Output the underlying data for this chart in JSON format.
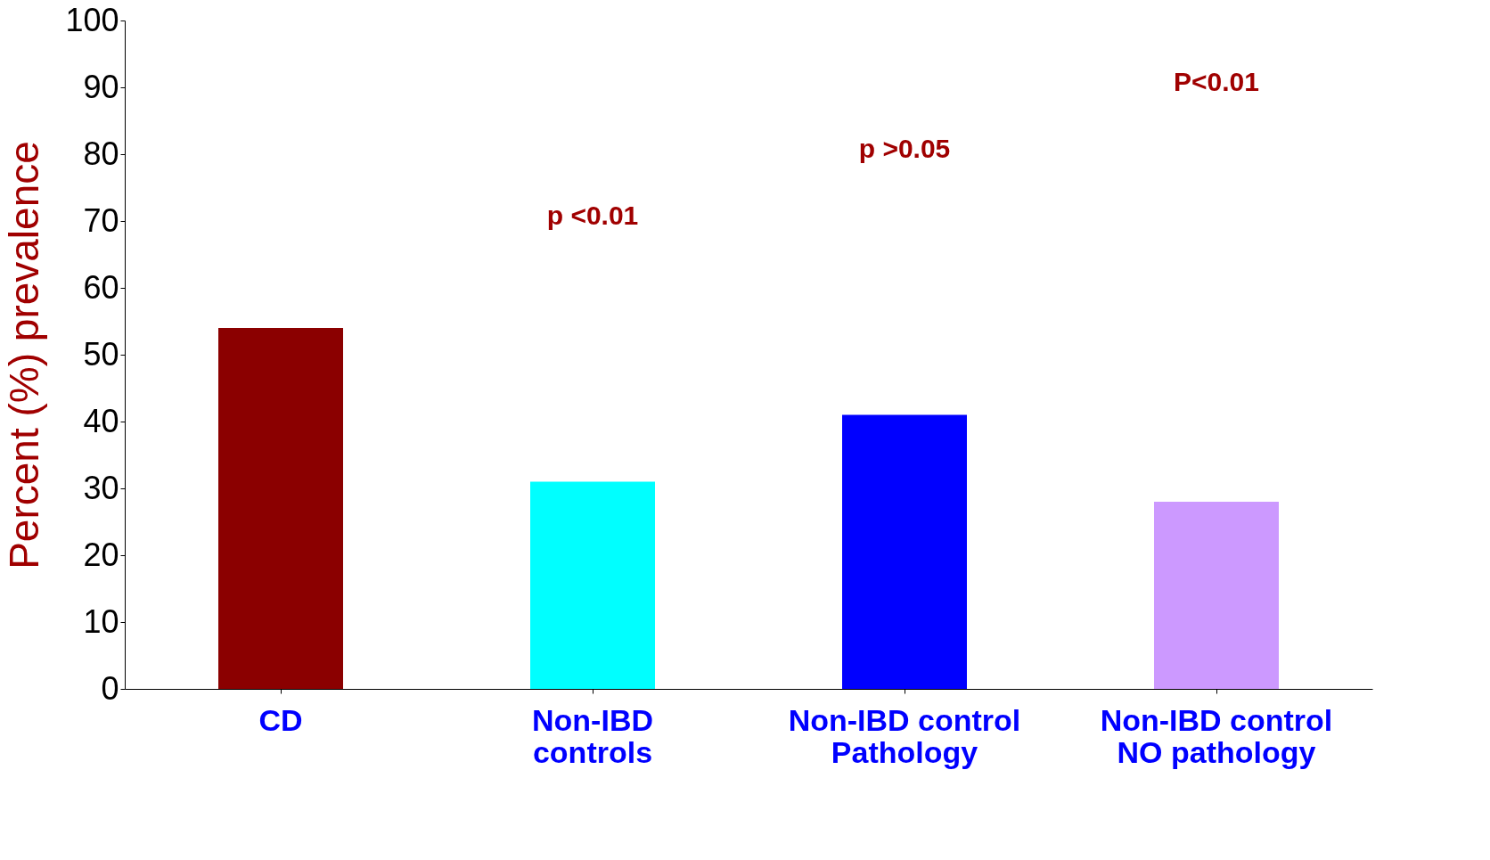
{
  "chart_data": {
    "type": "bar",
    "ylabel": "Percent (%) prevalence",
    "categories": [
      "CD",
      "Non-IBD\ncontrols",
      "Non-IBD control\nPathology",
      "Non-IBD control\nNO pathology"
    ],
    "values": [
      54,
      31,
      41,
      28
    ],
    "colors": [
      "#8b0000",
      "#00ffff",
      "#0000ff",
      "#cc99ff"
    ],
    "ylim": [
      0,
      100
    ],
    "yticks": [
      0,
      10,
      20,
      30,
      40,
      50,
      60,
      70,
      80,
      90,
      100
    ],
    "grid": false,
    "annotations": [
      "p <0.01",
      "p >0.05",
      "P<0.01"
    ]
  }
}
